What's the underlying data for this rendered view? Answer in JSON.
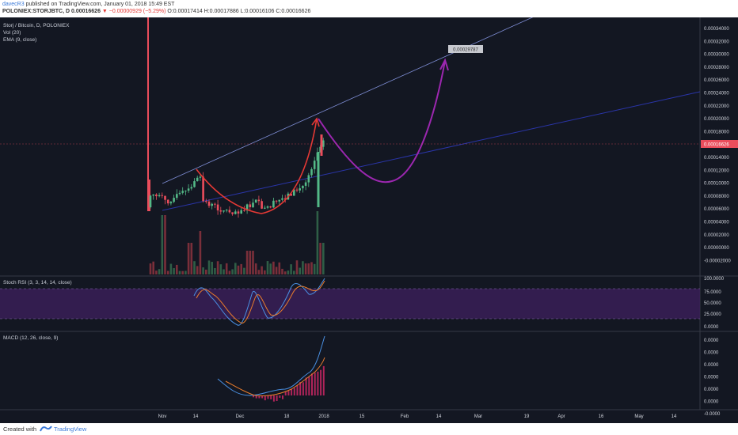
{
  "header": {
    "line1_user": "davecR3",
    "line1_rest": " published on TradingView.com, January 01, 2018 15:49 EST",
    "line2_prefix": "POLONIEX:STORJBTC, D  0.00016626 ",
    "line2_change": "▼ −0.00000929 (−5.29%)",
    "line2_ohlc": "  O:0.00017414  H:0.00017886  L:0.00016106  C:0.00016626"
  },
  "legend": {
    "title": "Storj / Bitcoin, D, POLONIEX",
    "vol": "Vol (20)",
    "ema": "EMA (9, close)",
    "stoch": "Stoch RSI (3, 3, 14, 14, close)",
    "macd": "MACD (12, 26, close, 9)"
  },
  "price_axis": [
    "0.00034000",
    "0.00032000",
    "0.00030000",
    "0.00028000",
    "0.00026000",
    "0.00024000",
    "0.00022000",
    "0.00020000",
    "0.00018000",
    "0.00016000",
    "0.00014000",
    "0.00012000",
    "0.00010000",
    "0.00008000",
    "0.00006000",
    "0.00004000",
    "0.00002000",
    "0.00000000",
    "-0.00002000"
  ],
  "current_price_tag": "0.00016626",
  "target_tag": "0.00029787",
  "stoch_axis": [
    "100.0000",
    "75.0000",
    "50.0000",
    "25.0000",
    "0.0000"
  ],
  "macd_axis": [
    "0.0000",
    "0.0000",
    "0.0000",
    "0.0000",
    "0.0000",
    "0.0000",
    "-0.0000"
  ],
  "time_axis": [
    "Nov",
    "14",
    "Dec",
    "18",
    "2018",
    "15",
    "Feb",
    "14",
    "Mar",
    "19",
    "Apr",
    "16",
    "May",
    "14"
  ],
  "footer": {
    "created": "Created with",
    "brand": "TradingView"
  },
  "colors": {
    "bg": "#131722",
    "up": "#53b987",
    "down": "#eb4d5c",
    "projection": "#9c27b0",
    "rounding": "#e53935",
    "trendline": "#5c7cd6"
  }
}
